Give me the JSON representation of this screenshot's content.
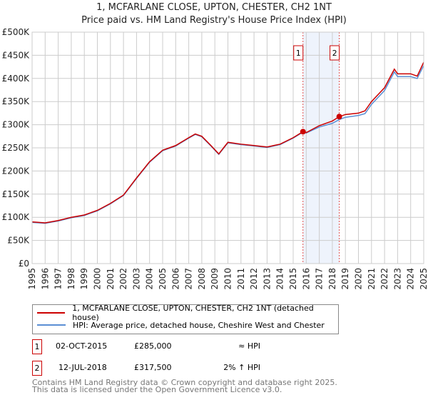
{
  "title": "1, MCFARLANE CLOSE, UPTON, CHESTER, CH2 1NT",
  "subtitle": "Price paid vs. HM Land Registry's House Price Index (HPI)",
  "chart_data": {
    "type": "line",
    "xlim": [
      1995,
      2025
    ],
    "ylim": [
      0,
      500000
    ],
    "x_ticks": [
      "1995",
      "1996",
      "1997",
      "1998",
      "1999",
      "2000",
      "2001",
      "2002",
      "2003",
      "2004",
      "2005",
      "2006",
      "2007",
      "2008",
      "2009",
      "2010",
      "2011",
      "2012",
      "2013",
      "2014",
      "2015",
      "2016",
      "2017",
      "2018",
      "2019",
      "2020",
      "2021",
      "2022",
      "2023",
      "2024",
      "2025"
    ],
    "y_ticks": [
      {
        "v": 0,
        "label": "£0"
      },
      {
        "v": 50000,
        "label": "£50K"
      },
      {
        "v": 100000,
        "label": "£100K"
      },
      {
        "v": 150000,
        "label": "£150K"
      },
      {
        "v": 200000,
        "label": "£200K"
      },
      {
        "v": 250000,
        "label": "£250K"
      },
      {
        "v": 300000,
        "label": "£300K"
      },
      {
        "v": 350000,
        "label": "£350K"
      },
      {
        "v": 400000,
        "label": "£400K"
      },
      {
        "v": 450000,
        "label": "£450K"
      },
      {
        "v": 500000,
        "label": "£500K"
      }
    ],
    "grid": true,
    "series": [
      {
        "name": "1, MCFARLANE CLOSE, UPTON, CHESTER, CH2 1NT (detached house)",
        "color": "#cc0000",
        "x": [
          1995,
          1996,
          1997,
          1998,
          1999,
          2000,
          2001,
          2002,
          2003,
          2004,
          2005,
          2006,
          2007,
          2007.5,
          2008,
          2008.7,
          2009.3,
          2010,
          2011,
          2012,
          2013,
          2014,
          2015,
          2015.75,
          2016,
          2017,
          2018,
          2018.53,
          2019,
          2020,
          2020.5,
          2021,
          2022,
          2022.75,
          2023,
          2024,
          2024.5,
          2025
        ],
        "y": [
          90000,
          88000,
          93000,
          100000,
          105000,
          115000,
          130000,
          148000,
          185000,
          220000,
          245000,
          255000,
          272000,
          280000,
          275000,
          255000,
          237000,
          262000,
          258000,
          255000,
          252000,
          258000,
          272000,
          285000,
          283000,
          298000,
          308000,
          317500,
          322000,
          325000,
          330000,
          350000,
          380000,
          420000,
          410000,
          410000,
          405000,
          435000
        ]
      },
      {
        "name": "HPI: Average price, detached house, Cheshire West and Chester",
        "color": "#5b8fd4",
        "x": [
          1995,
          1996,
          1997,
          1998,
          1999,
          2000,
          2001,
          2002,
          2003,
          2004,
          2005,
          2006,
          2007,
          2007.5,
          2008,
          2008.7,
          2009.3,
          2010,
          2011,
          2012,
          2013,
          2014,
          2015,
          2015.75,
          2016,
          2017,
          2018,
          2018.53,
          2019,
          2020,
          2020.5,
          2021,
          2022,
          2022.75,
          2023,
          2024,
          2024.5,
          2025
        ],
        "y": [
          89000,
          87000,
          92000,
          99000,
          104000,
          114000,
          129000,
          147000,
          184000,
          219000,
          244000,
          254000,
          271000,
          279000,
          274000,
          254000,
          236000,
          261000,
          257000,
          254000,
          251000,
          257000,
          271000,
          284000,
          282000,
          295000,
          303000,
          311000,
          316000,
          320000,
          324000,
          344000,
          374000,
          414000,
          404000,
          404000,
          400000,
          428000
        ]
      }
    ],
    "sales": [
      {
        "label": "1",
        "x": 2015.75,
        "y": 285000
      },
      {
        "label": "2",
        "x": 2018.53,
        "y": 317500
      }
    ],
    "highlight_span": [
      2015.75,
      2018.53
    ]
  },
  "legend": {
    "red": "1, MCFARLANE CLOSE, UPTON, CHESTER, CH2 1NT (detached house)",
    "blue": "HPI: Average price, detached house, Cheshire West and Chester"
  },
  "transactions": [
    {
      "num": "1",
      "date": "02-OCT-2015",
      "price": "£285,000",
      "hpi": "≈ HPI"
    },
    {
      "num": "2",
      "date": "12-JUL-2018",
      "price": "£317,500",
      "hpi": "2% ↑ HPI"
    }
  ],
  "footer": {
    "line1": "Contains HM Land Registry data © Crown copyright and database right 2025.",
    "line2": "This data is licensed under the Open Government Licence v3.0."
  }
}
